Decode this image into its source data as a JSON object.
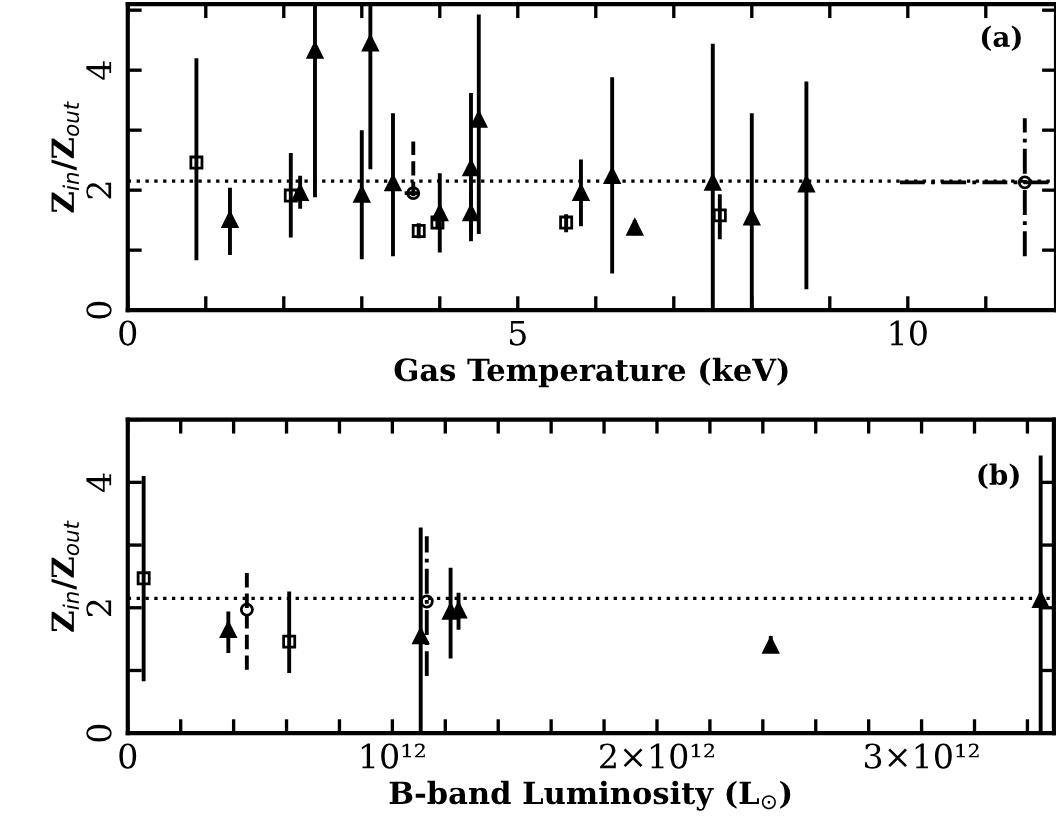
{
  "chart_data": [
    {
      "type": "scatter",
      "xlabel": "Gas Temperature (keV)",
      "ylabel": "Z$_{in}$/Z$_{out}$",
      "annotations": [
        "(a)"
      ],
      "xlim": [
        0,
        11.9
      ],
      "ylim": [
        0,
        5.1
      ],
      "xticks": [
        0,
        {
          "value": 1,
          "label": null
        },
        {
          "value": 2,
          "label": null
        },
        {
          "value": 3,
          "label": null
        },
        {
          "value": 4,
          "label": null
        },
        5,
        {
          "value": 6,
          "label": null
        },
        {
          "value": 7,
          "label": null
        },
        {
          "value": 8,
          "label": null
        },
        {
          "value": 9,
          "label": null
        },
        10,
        {
          "value": 11,
          "label": null
        }
      ],
      "yticks": [
        0,
        {
          "value": 1,
          "label": null
        },
        2,
        {
          "value": 3,
          "label": null
        },
        4,
        {
          "value": 5,
          "label": null
        }
      ],
      "ref_lines": [
        {
          "axis": "y",
          "value": 2.15,
          "line_style": "dotted",
          "color": "#000000"
        }
      ],
      "grid": false,
      "legend": false,
      "series": [
        {
          "color": "#000000",
          "marker": "square",
          "line_style": "solid",
          "x": [
            0.88,
            2.09,
            3.73,
            3.97,
            5.62,
            7.59
          ],
          "values": [
            2.46,
            1.91,
            1.32,
            1.46,
            1.46,
            1.58
          ],
          "errors": [
            [
              0.83,
              4.2
            ],
            [
              1.21,
              2.62
            ],
            [
              1.2,
              1.45
            ],
            [
              1.35,
              1.6
            ],
            [
              1.3,
              1.6
            ],
            [
              1.18,
              1.93
            ]
          ]
        },
        {
          "color": "#000000",
          "marker": "triangle",
          "line_style": "solid",
          "x": [
            1.31,
            2.21,
            2.4,
            3.0,
            3.11,
            3.4,
            4.0,
            4.4,
            4.4,
            4.5,
            5.81,
            6.21,
            6.5,
            7.5,
            8.0,
            8.7
          ],
          "values": [
            1.51,
            1.96,
            4.33,
            1.93,
            4.45,
            2.12,
            1.62,
            2.37,
            1.62,
            3.18,
            1.96,
            2.24,
            1.38,
            2.13,
            1.55,
            2.1
          ],
          "errors": [
            [
              0.92,
              2.04
            ],
            [
              1.69,
              2.24
            ],
            [
              1.88,
              5.1
            ],
            [
              0.85,
              3.0
            ],
            [
              2.35,
              5.1
            ],
            [
              0.9,
              3.28
            ],
            [
              0.96,
              2.28
            ],
            [
              1.27,
              3.62
            ],
            [
              1.15,
              2.0
            ],
            [
              1.27,
              4.93
            ],
            [
              1.4,
              2.51
            ],
            [
              0.61,
              3.88
            ],
            [
              1.25,
              1.5
            ],
            [
              0,
              4.44
            ],
            [
              0,
              3.28
            ],
            [
              0.35,
              3.81
            ]
          ]
        },
        {
          "color": "#000000",
          "marker": "circle",
          "line_style": "dashed",
          "x": [
            3.66
          ],
          "values": [
            1.95
          ],
          "errors": [
            [
              1.9,
              2.81
            ]
          ],
          "xerrors": [
            [
              3.55,
              3.78
            ]
          ]
        },
        {
          "color": "#000000",
          "marker": "circle",
          "line_style": "dashdot",
          "x": [
            11.5
          ],
          "values": [
            2.13
          ],
          "errors": [
            [
              0.9,
              3.2
            ]
          ],
          "xerrors": [
            [
              9.9,
              11.9
            ]
          ]
        }
      ]
    },
    {
      "type": "scatter",
      "xlabel": "B-band Luminosity (L$_{⊙}$)",
      "ylabel": "Z$_{in}$/Z$_{out}$",
      "annotations": [
        "(b)"
      ],
      "xlim": [
        0,
        3500000000000.0
      ],
      "ylim": [
        0,
        5.0
      ],
      "xticks": [
        0,
        {
          "value": 200000000000.0,
          "label": null
        },
        {
          "value": 400000000000.0,
          "label": null
        },
        {
          "value": 600000000000.0,
          "label": null
        },
        {
          "value": 800000000000.0,
          "label": null
        },
        {
          "value": 1000000000000.0,
          "label": "10¹²"
        },
        {
          "value": 1200000000000.0,
          "label": null
        },
        {
          "value": 1400000000000.0,
          "label": null
        },
        {
          "value": 1600000000000.0,
          "label": null
        },
        {
          "value": 1800000000000.0,
          "label": null
        },
        {
          "value": 2000000000000.0,
          "label": "2×10¹²"
        },
        {
          "value": 2200000000000.0,
          "label": null
        },
        {
          "value": 2400000000000.0,
          "label": null
        },
        {
          "value": 2600000000000.0,
          "label": null
        },
        {
          "value": 2800000000000.0,
          "label": null
        },
        {
          "value": 3000000000000.0,
          "label": "3×10¹²"
        },
        {
          "value": 3200000000000.0,
          "label": null
        },
        {
          "value": 3400000000000.0,
          "label": null
        }
      ],
      "yticks": [
        0,
        {
          "value": 1,
          "label": null
        },
        2,
        {
          "value": 3,
          "label": null
        },
        4,
        {
          "value": 5,
          "label": null
        }
      ],
      "ref_lines": [
        {
          "axis": "y",
          "value": 2.15,
          "line_style": "dotted",
          "color": "#000000"
        }
      ],
      "grid": false,
      "legend": false,
      "series": [
        {
          "color": "#000000",
          "marker": "square",
          "line_style": "solid",
          "x": [
            60000000000.0,
            610000000000.0
          ],
          "values": [
            2.47,
            1.46
          ],
          "errors": [
            [
              0.83,
              4.1
            ],
            [
              0.96,
              2.26
            ]
          ]
        },
        {
          "color": "#000000",
          "marker": "triangle",
          "line_style": "solid",
          "x": [
            380000000000.0,
            1107000000000.0,
            1220000000000.0,
            1250000000000.0,
            2430000000000.0,
            3450000000000.0
          ],
          "values": [
            1.65,
            1.55,
            1.94,
            1.96,
            1.4,
            2.13
          ],
          "errors": [
            [
              1.28,
              1.94
            ],
            [
              0,
              3.28
            ],
            [
              1.19,
              2.64
            ],
            [
              1.65,
              2.24
            ],
            [
              1.28,
              1.55
            ],
            [
              0,
              4.43
            ]
          ]
        },
        {
          "color": "#000000",
          "marker": "circle",
          "line_style": "dashed",
          "x": [
            450000000000.0
          ],
          "values": [
            1.97
          ],
          "errors": [
            [
              1.01,
              2.61
            ]
          ]
        },
        {
          "color": "#000000",
          "marker": "circle",
          "line_style": "dashdot",
          "x": [
            1130000000000.0
          ],
          "values": [
            2.1
          ],
          "errors": [
            [
              0.91,
              3.14
            ]
          ]
        }
      ]
    }
  ]
}
